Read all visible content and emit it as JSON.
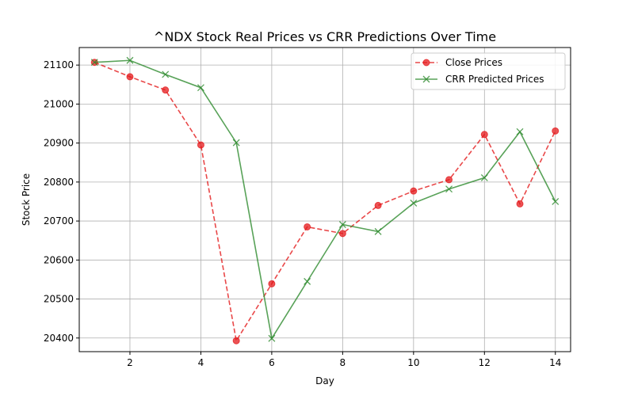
{
  "chart_data": {
    "type": "line",
    "title": "^NDX Stock Real Prices vs CRR Predictions Over Time",
    "xlabel": "Day",
    "ylabel": "Stock Price",
    "x": [
      1,
      2,
      3,
      4,
      5,
      6,
      7,
      8,
      9,
      10,
      11,
      12,
      13,
      14
    ],
    "xlim": [
      0.57,
      14.43
    ],
    "ylim": [
      20365,
      21145
    ],
    "x_ticks": [
      2,
      4,
      6,
      8,
      10,
      12,
      14
    ],
    "y_ticks": [
      20400,
      20500,
      20600,
      20700,
      20800,
      20900,
      21000,
      21100
    ],
    "grid": true,
    "legend_position": "top-right",
    "series": [
      {
        "name": "Close Prices",
        "color": "#e41a1c",
        "line_style": "dashed",
        "marker": "circle",
        "values": [
          21107,
          21070,
          21036,
          20895,
          20393,
          20539,
          20685,
          20668,
          20740,
          20777,
          20806,
          20922,
          20744,
          20931
        ]
      },
      {
        "name": "CRR Predicted Prices",
        "color": "#2e8b2e",
        "line_style": "solid",
        "marker": "x",
        "values": [
          21107,
          21112,
          21076,
          21042,
          20901,
          20399,
          20545,
          20691,
          20673,
          20746,
          20782,
          20811,
          20929,
          20750
        ]
      }
    ]
  }
}
